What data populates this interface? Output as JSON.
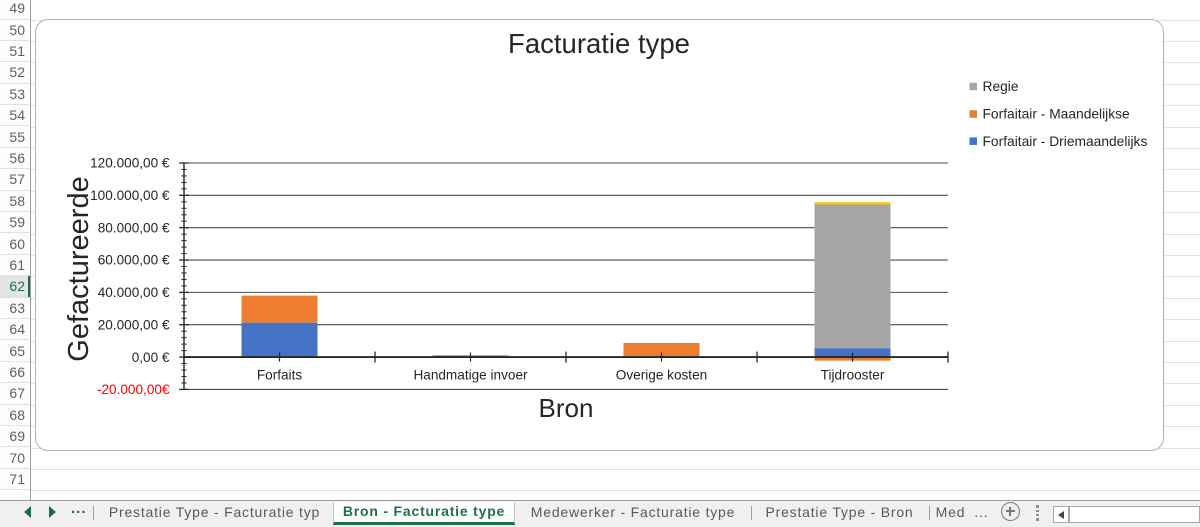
{
  "app": "excel-worksheet",
  "colors": {
    "accent_green": "#1E7145",
    "series_blue": "#4472C4",
    "series_orange": "#ED7D31",
    "series_gray": "#A5A5A5",
    "series_yellow": "#FFC000",
    "negative_label_red": "#FF0000"
  },
  "row_header": {
    "rows": [
      "49",
      "50",
      "51",
      "52",
      "53",
      "54",
      "55",
      "56",
      "57",
      "58",
      "59",
      "60",
      "61",
      "62",
      "63",
      "64",
      "65",
      "66",
      "67",
      "68",
      "69",
      "70",
      "71"
    ],
    "selected_row": "62"
  },
  "chart_data": {
    "type": "bar",
    "stacked": true,
    "title": "Facturatie type",
    "xlabel": "Bron",
    "ylabel": "Gefactureerde",
    "categories": [
      "Forfaits",
      "Handmatige invoer",
      "Overige kosten",
      "Tijdrooster"
    ],
    "series": [
      {
        "name": "Forfaitair - Driemaandelijks",
        "color": "#4472C4",
        "values": [
          21300,
          0,
          0,
          5500
        ]
      },
      {
        "name": "Forfaitair - Maandelijkse",
        "color": "#ED7D31",
        "values": [
          16700,
          0,
          8700,
          -2200
        ]
      },
      {
        "name": "Regie",
        "color": "#A5A5A5",
        "values": [
          0,
          1200,
          0,
          88850
        ]
      },
      {
        "name": "",
        "color": "#FFC000",
        "values": [
          0,
          0,
          0,
          1400
        ],
        "in_legend": false
      }
    ],
    "legend": {
      "position": "right",
      "entries": [
        {
          "label": "Regie",
          "color": "#A5A5A5"
        },
        {
          "label": "Forfaitair - Maandelijkse",
          "color": "#ED7D31"
        },
        {
          "label": "Forfaitair - Driemaandelijks",
          "color": "#4472C4"
        }
      ]
    },
    "y_axis": {
      "min": -20000,
      "max": 120000,
      "major_step": 20000,
      "minor_step": 4000,
      "tick_labels": [
        "-20.000,00€",
        "0,00 €",
        "20.000,00 €",
        "40.000,00 €",
        "60.000,00 €",
        "80.000,00 €",
        "100.000,00 €",
        "120.000,00 €"
      ],
      "negative_label_color": "#FF0000"
    },
    "grid": true
  },
  "sheet_tabs": {
    "tabs": [
      {
        "label": "Prestatie Type - Facturatie typ",
        "active": false
      },
      {
        "label": "Bron - Facturatie type",
        "active": true
      },
      {
        "label": "Medewerker - Facturatie type",
        "active": false
      },
      {
        "label": "Prestatie Type - Bron",
        "active": false
      }
    ],
    "truncated_tab": {
      "label": "Med",
      "ellipsis": "..."
    },
    "nav_overflow": "..."
  }
}
